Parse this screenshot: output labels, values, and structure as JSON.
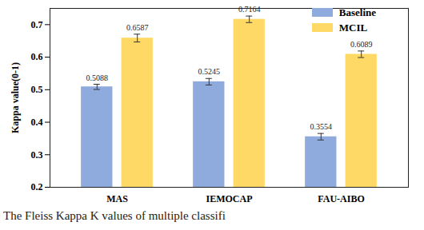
{
  "chart_data": {
    "type": "bar",
    "categories": [
      "MAS",
      "IEMOCAP",
      "FAU-AIBO"
    ],
    "series": [
      {
        "name": "Baseline",
        "color": "#8faadc",
        "values": [
          0.5088,
          0.5245,
          0.3554
        ],
        "errors": [
          0.008,
          0.01,
          0.01
        ]
      },
      {
        "name": "MCIL",
        "color": "#ffd966",
        "values": [
          0.6587,
          0.7164,
          0.6089
        ],
        "errors": [
          0.012,
          0.01,
          0.01
        ]
      }
    ],
    "ylabel": "Kappa value(0-1)",
    "ylim": [
      0.2,
      0.75
    ],
    "yticks": [
      0.2,
      0.3,
      0.4,
      0.5,
      0.6,
      0.7
    ],
    "data_labels": true,
    "legend": "top-right",
    "caption": "The Fleiss Kappa K values of multiple classifi"
  }
}
